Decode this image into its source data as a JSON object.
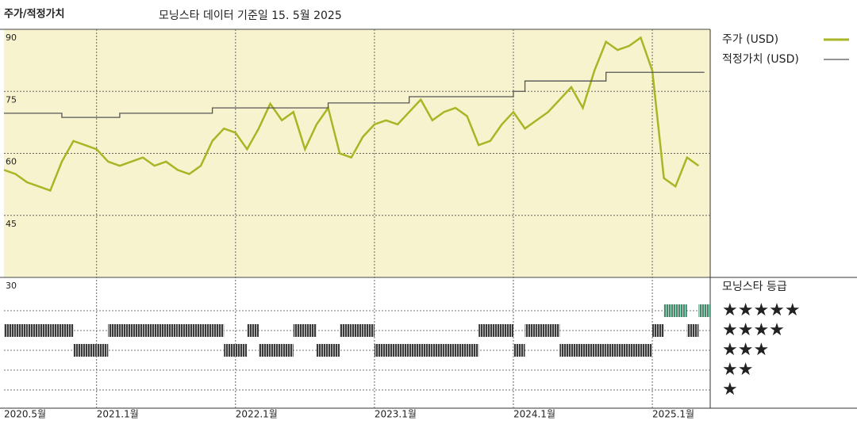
{
  "chart_data": {
    "type": "line",
    "title": "주가/적정가치",
    "subtitle": "모닝스타 데이터 기준일 15. 5월 2025",
    "x": [
      "2020-05",
      "2020-06",
      "2020-07",
      "2020-08",
      "2020-09",
      "2020-10",
      "2020-11",
      "2020-12",
      "2021-01",
      "2021-02",
      "2021-03",
      "2021-04",
      "2021-05",
      "2021-06",
      "2021-07",
      "2021-08",
      "2021-09",
      "2021-10",
      "2021-11",
      "2021-12",
      "2022-01",
      "2022-02",
      "2022-03",
      "2022-04",
      "2022-05",
      "2022-06",
      "2022-07",
      "2022-08",
      "2022-09",
      "2022-10",
      "2022-11",
      "2022-12",
      "2023-01",
      "2023-02",
      "2023-03",
      "2023-04",
      "2023-05",
      "2023-06",
      "2023-07",
      "2023-08",
      "2023-09",
      "2023-10",
      "2023-11",
      "2023-12",
      "2024-01",
      "2024-02",
      "2024-03",
      "2024-04",
      "2024-05",
      "2024-06",
      "2024-07",
      "2024-08",
      "2024-09",
      "2024-10",
      "2024-11",
      "2024-12",
      "2025-01",
      "2025-02",
      "2025-03",
      "2025-04",
      "2025-05"
    ],
    "xlim": [
      "2020-05",
      "2025-06"
    ],
    "xticks": [
      {
        "value": "2020-05",
        "label": "2020.5월"
      },
      {
        "value": "2021-01",
        "label": "2021.1월"
      },
      {
        "value": "2022-01",
        "label": "2022.1월"
      },
      {
        "value": "2023-01",
        "label": "2023.1월"
      },
      {
        "value": "2024-01",
        "label": "2024.1월"
      },
      {
        "value": "2025-01",
        "label": "2025.1월"
      }
    ],
    "ylim": [
      30,
      90
    ],
    "yticks": [
      90,
      75,
      60,
      45,
      30
    ],
    "grid": true,
    "series": [
      {
        "name": "주가 (USD)",
        "color": "#a8b524",
        "values": [
          56,
          55,
          53,
          52,
          51,
          58,
          63,
          62,
          61,
          58,
          57,
          58,
          59,
          57,
          58,
          56,
          55,
          57,
          63,
          66,
          65,
          61,
          66,
          72,
          68,
          70,
          61,
          67,
          71,
          60,
          59,
          64,
          67,
          68,
          67,
          70,
          73,
          68,
          70,
          71,
          69,
          62,
          63,
          67,
          70,
          66,
          68,
          70,
          73,
          76,
          71,
          80,
          87,
          85,
          86,
          88,
          80,
          54,
          52,
          59,
          57
        ]
      },
      {
        "name": "적정가치 (USD)",
        "color": "#555555",
        "step": true,
        "values": [
          69.7,
          69.7,
          69.7,
          69.7,
          69.7,
          68.7,
          68.7,
          68.7,
          68.7,
          68.7,
          69.7,
          69.7,
          69.7,
          69.7,
          69.7,
          69.7,
          69.7,
          69.7,
          71,
          71,
          71,
          71,
          71,
          71,
          71,
          71,
          71,
          71,
          72.2,
          72.2,
          72.2,
          72.2,
          72.2,
          72.2,
          72.2,
          73.7,
          73.7,
          73.7,
          73.7,
          73.7,
          73.7,
          73.7,
          73.7,
          73.7,
          75,
          77.5,
          77.5,
          77.5,
          77.5,
          77.5,
          77.5,
          77.5,
          79.6,
          79.6,
          79.6,
          79.6,
          79.6,
          79.6,
          79.6,
          79.6,
          79.6
        ]
      }
    ],
    "ratings": {
      "title": "모닝스타 등급",
      "values": [
        4,
        4,
        4,
        4,
        4,
        4,
        3,
        3,
        3,
        4,
        4,
        4,
        4,
        4,
        4,
        4,
        4,
        4,
        4,
        3,
        3,
        4,
        3,
        3,
        3,
        4,
        4,
        3,
        3,
        4,
        4,
        4,
        3,
        3,
        3,
        3,
        3,
        3,
        3,
        3,
        3,
        4,
        4,
        4,
        3,
        4,
        4,
        4,
        3,
        3,
        3,
        3,
        3,
        3,
        3,
        3,
        4,
        5,
        5,
        4,
        5
      ],
      "levels": [
        5,
        4,
        3,
        2,
        1
      ],
      "labels": [
        "★★★★★",
        "★★★★",
        "★★★",
        "★★",
        "★"
      ],
      "colors": [
        "#3f8c6c",
        "#3a3a3a",
        "#3a3a3a",
        "#3a3a3a",
        "#3a3a3a"
      ]
    }
  }
}
